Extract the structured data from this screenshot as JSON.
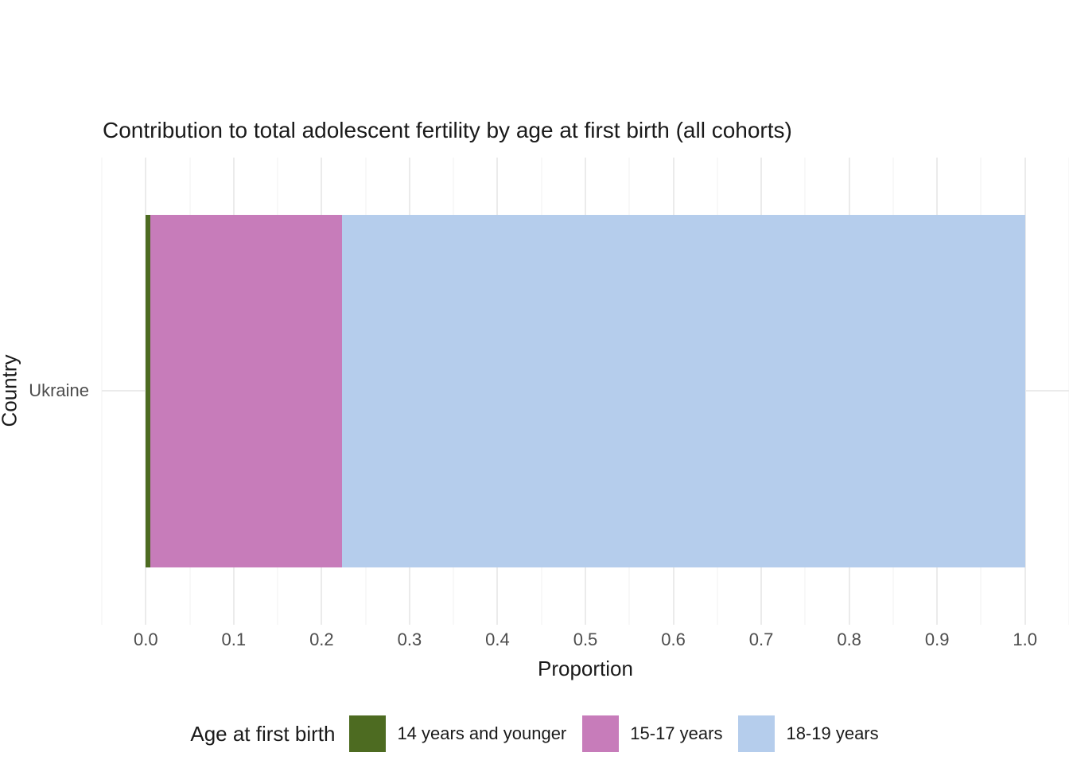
{
  "chart_data": {
    "type": "bar",
    "orientation": "horizontal_stacked",
    "title": "Contribution to total adolescent fertility by age at first birth (all cohorts)",
    "xlabel": "Proportion",
    "ylabel": "Country",
    "categories": [
      "Ukraine"
    ],
    "series": [
      {
        "name": "14 years and younger",
        "values": [
          0.005
        ],
        "color": "#4D6B21"
      },
      {
        "name": "15-17 years",
        "values": [
          0.218
        ],
        "color": "#C77CBA"
      },
      {
        "name": "18-19 years",
        "values": [
          0.777
        ],
        "color": "#B5CDEC"
      }
    ],
    "xlim": [
      0,
      1
    ],
    "x_axis_expansion": 0.05,
    "x_ticks": [
      {
        "value": 0.0,
        "label": "0.0"
      },
      {
        "value": 0.1,
        "label": "0.1"
      },
      {
        "value": 0.2,
        "label": "0.2"
      },
      {
        "value": 0.3,
        "label": "0.3"
      },
      {
        "value": 0.4,
        "label": "0.4"
      },
      {
        "value": 0.5,
        "label": "0.5"
      },
      {
        "value": 0.6,
        "label": "0.6"
      },
      {
        "value": 0.7,
        "label": "0.7"
      },
      {
        "value": 0.8,
        "label": "0.8"
      },
      {
        "value": 0.9,
        "label": "0.9"
      },
      {
        "value": 1.0,
        "label": "1.0"
      }
    ],
    "minor_grid_step": 0.05,
    "grid": true,
    "grid_color_major": "#EBEBEB",
    "grid_color_minor": "#F0F0F0",
    "background": "#FFFFFF",
    "text_color_axis": "#4D4D4D",
    "text_color_title": "#1A1A1A",
    "legend": {
      "title": "Age at first birth",
      "position": "bottom"
    }
  }
}
